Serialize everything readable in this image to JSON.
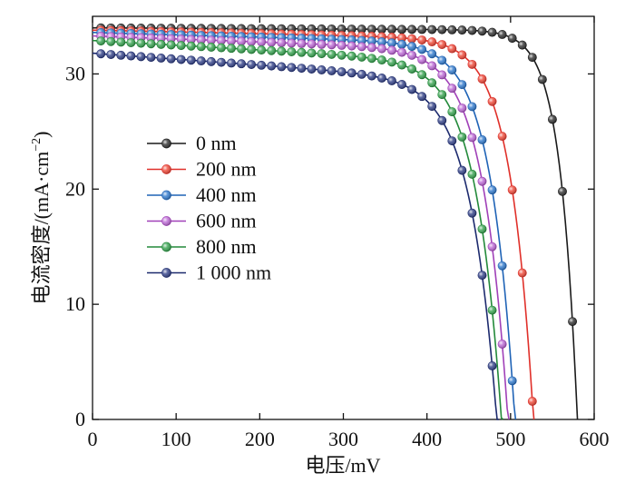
{
  "chart_data": {
    "type": "line",
    "xlabel": "电压/mV",
    "ylabel_main": "电流密度/(mA·cm",
    "ylabel_exp": "−2",
    "ylabel_close": ")",
    "xlim": [
      0,
      600
    ],
    "ylim": [
      0,
      35
    ],
    "xticks": [
      0,
      100,
      200,
      300,
      400,
      500,
      600
    ],
    "yticks": [
      0,
      10,
      20,
      30
    ],
    "xtick_labels": [
      "0",
      "100",
      "200",
      "300",
      "400",
      "500",
      "600"
    ],
    "ytick_labels": [
      "0",
      "10",
      "20",
      "30"
    ],
    "grid": false,
    "legend_position": "middle-left",
    "series": [
      {
        "name": "0 nm",
        "color": "#1a1a1a",
        "marker_color": "#3a3a3a",
        "jsc": 34.0,
        "voc": 580,
        "knee": 0.035,
        "sag": 0.2
      },
      {
        "name": "200 nm",
        "color": "#e0302a",
        "marker_color": "#f05040",
        "jsc": 33.8,
        "voc": 528,
        "knee": 0.052,
        "sag": 0.8
      },
      {
        "name": "400 nm",
        "color": "#1f63b6",
        "marker_color": "#3a80d0",
        "jsc": 33.6,
        "voc": 506,
        "knee": 0.057,
        "sag": 1.0
      },
      {
        "name": "600 nm",
        "color": "#a040b8",
        "marker_color": "#c070d8",
        "jsc": 33.3,
        "voc": 498,
        "knee": 0.06,
        "sag": 1.3
      },
      {
        "name": "800 nm",
        "color": "#238a3a",
        "marker_color": "#40a858",
        "jsc": 32.9,
        "voc": 491,
        "knee": 0.062,
        "sag": 2.0
      },
      {
        "name": "1 000 nm",
        "color": "#1c2a6e",
        "marker_color": "#3c4a8e",
        "jsc": 31.8,
        "voc": 486,
        "knee": 0.065,
        "sag": 2.5
      }
    ]
  }
}
